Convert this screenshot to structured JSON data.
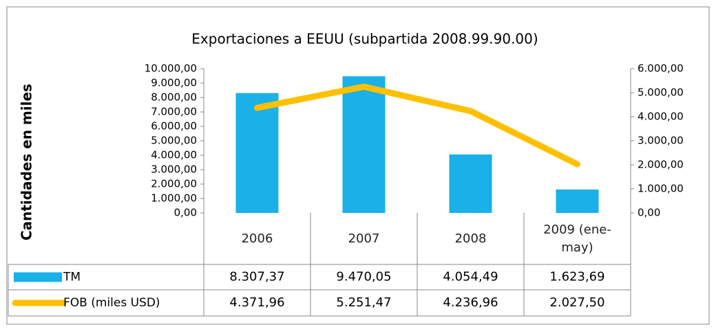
{
  "chart_data": {
    "type": "bar_line_table",
    "title": "Exportaciones a EEUU (subpartida 2008.99.90.00)",
    "ylabel": "Cantidades en miles",
    "categories": [
      "2006",
      "2007",
      "2008",
      "2009 (ene-may)"
    ],
    "series": [
      {
        "name": "TM",
        "type": "bar",
        "color": "#1ab0e8",
        "values": [
          8307.37,
          9470.05,
          4054.49,
          1623.69
        ],
        "value_labels": [
          "8.307,37",
          "9.470,05",
          "4.054,49",
          "1.623,69"
        ]
      },
      {
        "name": "FOB (miles USD)",
        "type": "line",
        "axis": "y2",
        "color": "#ffc000",
        "values": [
          4371.96,
          5251.47,
          4236.96,
          2027.5
        ],
        "value_labels": [
          "4.371,96",
          "5.251,47",
          "4.236,96",
          "2.027,50"
        ]
      }
    ],
    "ylim": [
      0,
      10000
    ],
    "yticks": [
      {
        "value": 0,
        "label": "0,00"
      },
      {
        "value": 1000,
        "label": "1.000,00"
      },
      {
        "value": 2000,
        "label": "2.000,00"
      },
      {
        "value": 3000,
        "label": "3.000,00"
      },
      {
        "value": 4000,
        "label": "4.000,00"
      },
      {
        "value": 5000,
        "label": "5.000,00"
      },
      {
        "value": 6000,
        "label": "6.000,00"
      },
      {
        "value": 7000,
        "label": "7.000,00"
      },
      {
        "value": 8000,
        "label": "8.000,00"
      },
      {
        "value": 9000,
        "label": "9.000,00"
      },
      {
        "value": 10000,
        "label": "10.000,00"
      }
    ],
    "y2lim": [
      0,
      6000
    ],
    "y2ticks": [
      {
        "value": 0,
        "label": "0,00"
      },
      {
        "value": 1000,
        "label": "1.000,00"
      },
      {
        "value": 2000,
        "label": "2.000,00"
      },
      {
        "value": 3000,
        "label": "3.000,00"
      },
      {
        "value": 4000,
        "label": "4.000,00"
      },
      {
        "value": 5000,
        "label": "5.000,00"
      },
      {
        "value": 6000,
        "label": "6.000,00"
      }
    ]
  }
}
